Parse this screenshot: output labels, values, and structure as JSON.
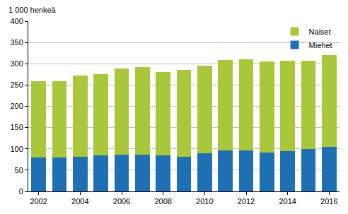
{
  "chart_data": {
    "type": "bar",
    "stacked": true,
    "y_label": "1 000 henkeä",
    "categories": [
      "2002",
      null,
      "2004",
      null,
      "2006",
      null,
      "2008",
      null,
      "2010",
      null,
      "2012",
      null,
      "2014",
      null,
      "2016"
    ],
    "series": [
      {
        "name": "Miehet",
        "color": "#1f6fb4",
        "values": [
          79,
          79,
          82,
          84,
          86,
          87,
          84,
          82,
          89,
          97,
          96,
          91,
          95,
          100,
          104
        ]
      },
      {
        "name": "Naiset",
        "color": "#a9c73b",
        "values": [
          180,
          180,
          191,
          191,
          202,
          205,
          196,
          203,
          207,
          211,
          215,
          214,
          212,
          207,
          217
        ]
      }
    ],
    "ylim": [
      0,
      400
    ],
    "yticks": [
      0,
      50,
      100,
      150,
      200,
      250,
      300,
      350,
      400
    ],
    "grid": true,
    "legend": "top-right"
  }
}
